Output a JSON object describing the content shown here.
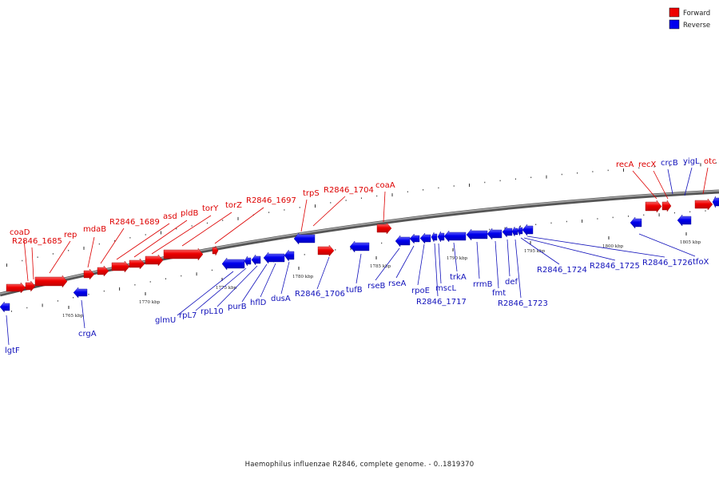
{
  "legend": [
    {
      "label": "Forward",
      "color": "#ee0000"
    },
    {
      "label": "Reverse",
      "color": "#0000ee"
    }
  ],
  "caption": "Haemophilus influenzae R2846, complete genome. - 0..1819370",
  "scale_labels": [
    "1765 kbp",
    "1770 kbp",
    "1775 kbp",
    "1780 kbp",
    "1785 kbp",
    "1790 kbp",
    "1795 kbp",
    "1800 kbp",
    "1805 kbp"
  ],
  "genes": [
    {
      "name": "lgtF",
      "strand": "reverse"
    },
    {
      "name": "coaD",
      "strand": "forward"
    },
    {
      "name": "R2846_1685",
      "strand": "forward"
    },
    {
      "name": "rep",
      "strand": "forward"
    },
    {
      "name": "crgA",
      "strand": "reverse"
    },
    {
      "name": "mdaB",
      "strand": "forward"
    },
    {
      "name": "R2846_1689",
      "strand": "forward"
    },
    {
      "name": "asd",
      "strand": "forward"
    },
    {
      "name": "pldB",
      "strand": "forward"
    },
    {
      "name": "torY",
      "strand": "forward"
    },
    {
      "name": "torZ",
      "strand": "forward"
    },
    {
      "name": "R2846_1697",
      "strand": "forward"
    },
    {
      "name": "glmU",
      "strand": "reverse"
    },
    {
      "name": "rpL7",
      "strand": "reverse"
    },
    {
      "name": "rpL10",
      "strand": "reverse"
    },
    {
      "name": "purB",
      "strand": "reverse"
    },
    {
      "name": "hflD",
      "strand": "reverse"
    },
    {
      "name": "dusA",
      "strand": "reverse"
    },
    {
      "name": "trpS",
      "strand": "forward"
    },
    {
      "name": "R2846_1704",
      "strand": "forward"
    },
    {
      "name": "R2846_1706",
      "strand": "reverse"
    },
    {
      "name": "tufB",
      "strand": "reverse"
    },
    {
      "name": "coaA",
      "strand": "forward"
    },
    {
      "name": "rseB",
      "strand": "reverse"
    },
    {
      "name": "rseA",
      "strand": "reverse"
    },
    {
      "name": "rpoE",
      "strand": "reverse"
    },
    {
      "name": "R2846_1717",
      "strand": "reverse"
    },
    {
      "name": "mscL",
      "strand": "reverse"
    },
    {
      "name": "trkA",
      "strand": "reverse"
    },
    {
      "name": "rrmB",
      "strand": "reverse"
    },
    {
      "name": "fmt",
      "strand": "reverse"
    },
    {
      "name": "def",
      "strand": "reverse"
    },
    {
      "name": "R2846_1723",
      "strand": "reverse"
    },
    {
      "name": "R2846_1724",
      "strand": "reverse"
    },
    {
      "name": "R2846_1725",
      "strand": "reverse"
    },
    {
      "name": "R2846_1726",
      "strand": "reverse"
    },
    {
      "name": "tfoX",
      "strand": "reverse"
    },
    {
      "name": "recA",
      "strand": "forward"
    },
    {
      "name": "recX",
      "strand": "forward"
    },
    {
      "name": "crcB",
      "strand": "reverse"
    },
    {
      "name": "yigL",
      "strand": "reverse"
    },
    {
      "name": "otc",
      "strand": "forward"
    }
  ]
}
